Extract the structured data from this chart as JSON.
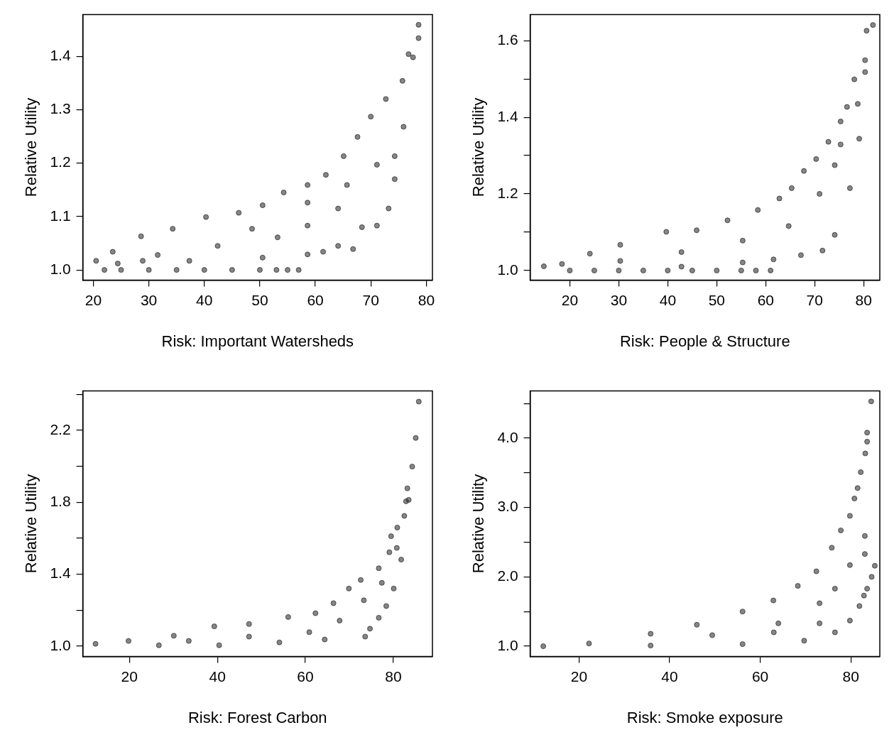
{
  "chart_data": [
    {
      "type": "scatter",
      "xlabel": "Risk: Important Watersheds",
      "ylabel": "Relative Utility",
      "xlim": [
        18.1,
        81.1
      ],
      "ylim": [
        0.981,
        1.478
      ],
      "xticks": [
        20,
        30,
        40,
        50,
        60,
        70,
        80
      ],
      "yticks": [
        {
          "value": 1.0,
          "label": "1.0"
        },
        1.1,
        1.2,
        1.3,
        1.4
      ],
      "marker": "circle",
      "grid": false,
      "series": [
        {
          "color": "#333333",
          "x": [
            20.5,
            23.5,
            28.6,
            34.3,
            40.3,
            46.2,
            50.5,
            54.3,
            58.6,
            61.9,
            65.1,
            67.6,
            70,
            72.7,
            75.7,
            76.8,
            77.6,
            78.6,
            78.6,
            24.4,
            37.3,
            50.5,
            58.6,
            61.4,
            64.1,
            66.8,
            68.4,
            71.1,
            73.2,
            74.3,
            74.3,
            71.1,
            75.9,
            31.6,
            42.4,
            53.2,
            58.6,
            64.1,
            65.7,
            28.9,
            48.6,
            58.6,
            22,
            25,
            30,
            35,
            40,
            45,
            50,
            53,
            55,
            57
          ],
          "values": [
            1.017,
            1.034,
            1.063,
            1.077,
            1.099,
            1.107,
            1.121,
            1.145,
            1.159,
            1.178,
            1.213,
            1.249,
            1.287,
            1.32,
            1.354,
            1.404,
            1.398,
            1.434,
            1.459,
            1.012,
            1.017,
            1.023,
            1.029,
            1.034,
            1.045,
            1.039,
            1.08,
            1.083,
            1.115,
            1.17,
            1.213,
            1.197,
            1.268,
            1.028,
            1.045,
            1.061,
            1.083,
            1.115,
            1.159,
            1.017,
            1.077,
            1.126,
            1.0,
            1.0,
            1.0,
            1.0,
            1.0,
            1.0,
            1.0,
            1.0,
            1.0,
            1.0
          ]
        }
      ]
    },
    {
      "type": "scatter",
      "xlabel": "Risk: People & Structure",
      "ylabel": "Relative Utility",
      "xlim": [
        11.9,
        83.3
      ],
      "ylim": [
        0.975,
        1.668
      ],
      "xticks": [
        20,
        30,
        40,
        50,
        60,
        70,
        80
      ],
      "yticks": [
        {
          "value": 1.0,
          "label": "1.0"
        },
        {
          "value": 1.1,
          "label": null
        },
        1.2,
        {
          "value": 1.3,
          "label": null
        },
        1.4,
        {
          "value": 1.5,
          "label": null
        },
        1.6
      ],
      "marker": "circle",
      "grid": false,
      "series": [
        {
          "color": "#333333",
          "x": [
            14.7,
            18.4,
            24.1,
            30.3,
            39.7,
            45.9,
            52.2,
            58.4,
            62.8,
            65.3,
            67.8,
            70.3,
            72.8,
            75.3,
            76.6,
            78.1,
            80.3,
            80.3,
            80.6,
            81.9,
            42.8,
            55.3,
            61.6,
            67.2,
            71.6,
            74.1,
            77.2,
            79.1,
            78.8,
            30.3,
            42.8,
            55.3,
            64.7,
            71,
            74.1,
            75.3,
            20,
            25,
            30,
            35,
            40,
            45,
            50,
            55,
            58,
            61
          ],
          "values": [
            1.011,
            1.017,
            1.044,
            1.067,
            1.101,
            1.105,
            1.131,
            1.158,
            1.188,
            1.215,
            1.26,
            1.291,
            1.336,
            1.389,
            1.427,
            1.499,
            1.518,
            1.549,
            1.626,
            1.641,
            1.01,
            1.021,
            1.029,
            1.04,
            1.052,
            1.093,
            1.215,
            1.344,
            1.435,
            1.025,
            1.048,
            1.078,
            1.116,
            1.2,
            1.275,
            1.329,
            1.0,
            1.0,
            1.0,
            1.0,
            1.0,
            1.0,
            1.0,
            1.0,
            1.0,
            1.0
          ]
        }
      ]
    },
    {
      "type": "scatter",
      "xlabel": "Risk: Forest Carbon",
      "ylabel": "Relative Utility",
      "xlim": [
        9.4,
        88.9
      ],
      "ylim": [
        0.943,
        2.418
      ],
      "xticks": [
        20,
        40,
        60,
        80
      ],
      "yticks": [
        {
          "value": 1.0,
          "label": "1.0"
        },
        {
          "value": 1.2,
          "label": null
        },
        1.4,
        {
          "value": 1.6,
          "label": null
        },
        1.8,
        {
          "value": 2.0,
          "label": null
        },
        2.2,
        {
          "value": 2.4,
          "label": null
        }
      ],
      "marker": "circle",
      "grid": false,
      "series": [
        {
          "color": "#333333",
          "x": [
            12.3,
            19.8,
            30.1,
            39.3,
            47.2,
            56.1,
            62.3,
            66.4,
            69.9,
            72.6,
            76.7,
            79.1,
            79.5,
            80.9,
            82.9,
            83.2,
            84.3,
            85.1,
            85.8,
            26.7,
            40.4,
            54.1,
            64.4,
            73.6,
            74.7,
            76.7,
            78.4,
            80.1,
            81.8,
            82.5,
            83.5,
            33.5,
            47.2,
            60.9,
            67.8,
            73.3,
            77.4,
            80.8
          ],
          "values": [
            1.013,
            1.029,
            1.058,
            1.11,
            1.123,
            1.162,
            1.183,
            1.239,
            1.32,
            1.368,
            1.433,
            1.522,
            1.611,
            1.659,
            1.805,
            1.877,
            1.998,
            2.157,
            2.359,
            1.005,
            1.005,
            1.021,
            1.037,
            1.053,
            1.097,
            1.158,
            1.223,
            1.32,
            1.481,
            1.724,
            1.813,
            1.029,
            1.053,
            1.078,
            1.142,
            1.255,
            1.352,
            1.546
          ]
        }
      ]
    },
    {
      "type": "scatter",
      "xlabel": "Risk: Smoke exposure",
      "ylabel": "Relative Utility",
      "xlim": [
        9.2,
        86.4
      ],
      "ylim": [
        0.853,
        4.68
      ],
      "xticks": [
        20,
        40,
        60,
        80
      ],
      "yticks": [
        {
          "value": 1.0,
          "label": "1.0"
        },
        {
          "value": 1.5,
          "label": null
        },
        {
          "value": 2.0,
          "label": "2.0"
        },
        {
          "value": 2.5,
          "label": null
        },
        {
          "value": 3.0,
          "label": "3.0"
        },
        {
          "value": 3.5,
          "label": null
        },
        {
          "value": 4.0,
          "label": "4.0"
        },
        {
          "value": 4.5,
          "label": null
        }
      ],
      "marker": "circle",
      "grid": false,
      "series": [
        {
          "color": "#333333",
          "x": [
            12.1,
            22.2,
            35.8,
            46,
            56.1,
            62.9,
            68.3,
            72.4,
            75.8,
            77.8,
            79.8,
            80.8,
            81.5,
            82.2,
            83.2,
            83.6,
            83.6,
            84.5,
            35.8,
            56.1,
            69.7,
            76.5,
            79.8,
            81.9,
            82.9,
            83.6,
            84.6,
            85.3,
            83.1,
            83.1,
            64,
            49.4,
            63,
            73.1,
            76.5,
            79.8,
            73.1
          ],
          "values": [
            1.0,
            1.04,
            1.18,
            1.31,
            1.5,
            1.66,
            1.87,
            2.08,
            2.42,
            2.67,
            2.88,
            3.13,
            3.28,
            3.51,
            3.78,
            4.08,
            3.95,
            4.53,
            1.01,
            1.03,
            1.08,
            1.2,
            1.37,
            1.58,
            1.73,
            1.83,
            2.0,
            2.16,
            2.33,
            2.59,
            1.33,
            1.16,
            1.2,
            1.33,
            1.83,
            2.17,
            1.62
          ]
        }
      ]
    }
  ]
}
